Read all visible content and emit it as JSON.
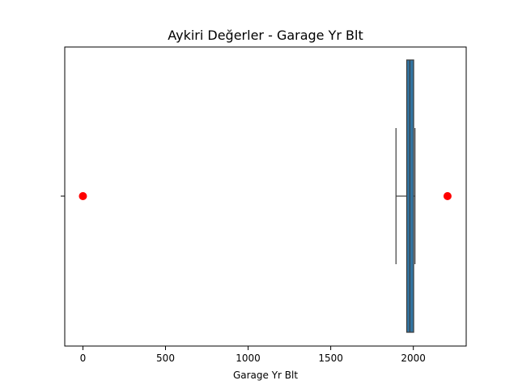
{
  "chart_data": {
    "type": "box",
    "title": "Aykiri Değerler - Garage Yr Blt",
    "xlabel": "Garage Yr Blt",
    "ylabel": "",
    "xlim": [
      -110,
      2320
    ],
    "xticks": [
      0,
      500,
      1000,
      1500,
      2000
    ],
    "box": {
      "whisker_low": 1895,
      "q1": 1960,
      "median": 1979,
      "q3": 2002,
      "whisker_high": 2010
    },
    "outliers": [
      0,
      2207
    ],
    "colors": {
      "box_fill": "#3274a1",
      "outlier": "#ff0000",
      "line": "#3d3d3d"
    }
  }
}
